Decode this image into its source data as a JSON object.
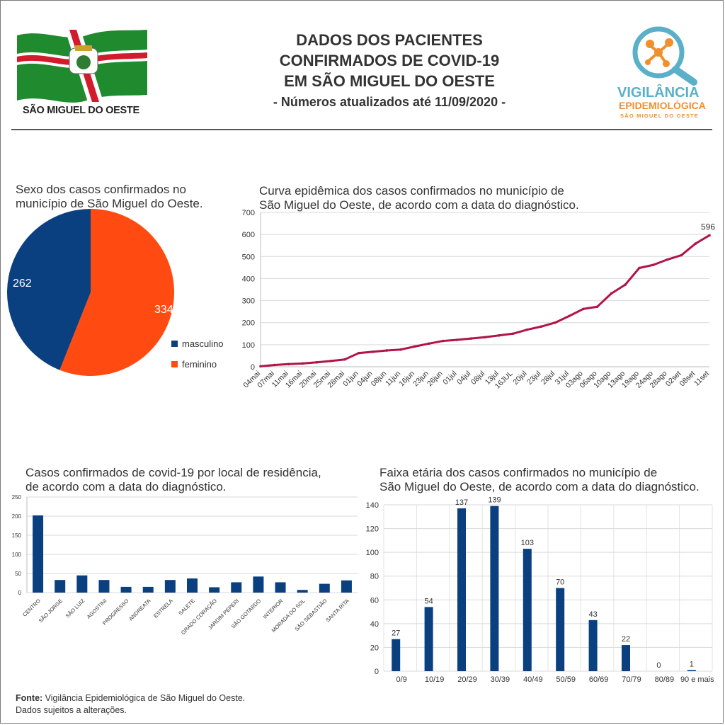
{
  "header": {
    "title_lines": [
      "DADOS DOS PACIENTES",
      "CONFIRMADOS DE COVID-19",
      "EM SÃO MIGUEL DO OESTE"
    ],
    "subtitle": "- Números atualizados até 11/09/2020 -",
    "city_logo_text": "SÃO MIGUEL DO OESTE",
    "agency_logo": {
      "line1": "VIGILÂNCIA",
      "line2": "EPIDEMIOLÓGICA",
      "line3": "SÃO MIGUEL DO OESTE"
    }
  },
  "colors": {
    "blue": "#0b4080",
    "orange": "#ff4b12",
    "crimson": "#b0144a",
    "grid": "#d9d9d9"
  },
  "footer": {
    "label": "Fonte:",
    "text": "Vigilância Epidemiológica de São Miguel do Oeste.",
    "line2": "Dados sujeitos a alterações."
  },
  "chart_data": [
    {
      "type": "pie",
      "title_lines": [
        "Sexo dos casos confirmados no",
        "município de São Miguel do Oeste."
      ],
      "categories": [
        "masculino",
        "feminino"
      ],
      "values": [
        262,
        334
      ],
      "legend": "right"
    },
    {
      "type": "line",
      "title_lines": [
        "Curva epidêmica dos casos confirmados no município de",
        "São Miguel do Oeste, de acordo com a data do diagnóstico."
      ],
      "xlabels": [
        "04mai",
        "07mai",
        "11mai",
        "16mai",
        "20mai",
        "25mai",
        "28mai",
        "01jun",
        "04jun",
        "08jun",
        "11jun",
        "16jun",
        "23jun",
        "26jun",
        "01jul",
        "04jul",
        "08jul",
        "13jul",
        "16JUL",
        "20jul",
        "23jul",
        "28jul",
        "31jul",
        "03ago",
        "06ago",
        "10ago",
        "13ago",
        "19ago",
        "24ago",
        "28ago",
        "02set",
        "08set",
        "11set"
      ],
      "values": [
        2,
        8,
        12,
        15,
        20,
        26,
        33,
        62,
        68,
        74,
        78,
        92,
        105,
        117,
        122,
        128,
        134,
        142,
        150,
        168,
        182,
        200,
        230,
        262,
        272,
        332,
        372,
        448,
        462,
        486,
        506,
        558,
        596
      ],
      "ylim": [
        0,
        700
      ],
      "yticks": [
        0,
        100,
        200,
        300,
        400,
        500,
        600,
        700
      ],
      "end_label": "596"
    },
    {
      "type": "bar",
      "title_lines": [
        "Casos confirmados de covid-19 por local de residência,",
        "de acordo com a data do diagnóstico."
      ],
      "categories": [
        "CENTRO",
        "SÃO JORGE",
        "SÃO LUIZ",
        "AGOSTINI",
        "PROGRESSO",
        "ANDREATA",
        "ESTRELA",
        "SALETE",
        "GRADO CORAÇÃO",
        "JARDIM PEPERI",
        "SÃO GOTARDO",
        "INTERIOR",
        "MORADA DO SOL",
        "SÃO SEBASTIÃO",
        "SANTA RITA"
      ],
      "values": [
        202,
        33,
        45,
        33,
        15,
        15,
        33,
        37,
        14,
        27,
        42,
        27,
        7,
        23,
        32
      ],
      "ylim": [
        0,
        250
      ],
      "yticks": [
        0,
        50,
        100,
        150,
        200,
        250
      ]
    },
    {
      "type": "bar",
      "title_lines": [
        "Faixa etária dos casos confirmados no município de",
        "São Miguel do Oeste, de acordo com a data do diagnóstico."
      ],
      "categories": [
        "0/9",
        "10/19",
        "20/29",
        "30/39",
        "40/49",
        "50/59",
        "60/69",
        "70/79",
        "80/89",
        "90 e mais"
      ],
      "values": [
        27,
        54,
        137,
        139,
        103,
        70,
        43,
        22,
        0,
        1
      ],
      "ylim": [
        0,
        140
      ],
      "yticks": [
        0,
        20,
        40,
        60,
        80,
        100,
        120,
        140
      ]
    }
  ]
}
